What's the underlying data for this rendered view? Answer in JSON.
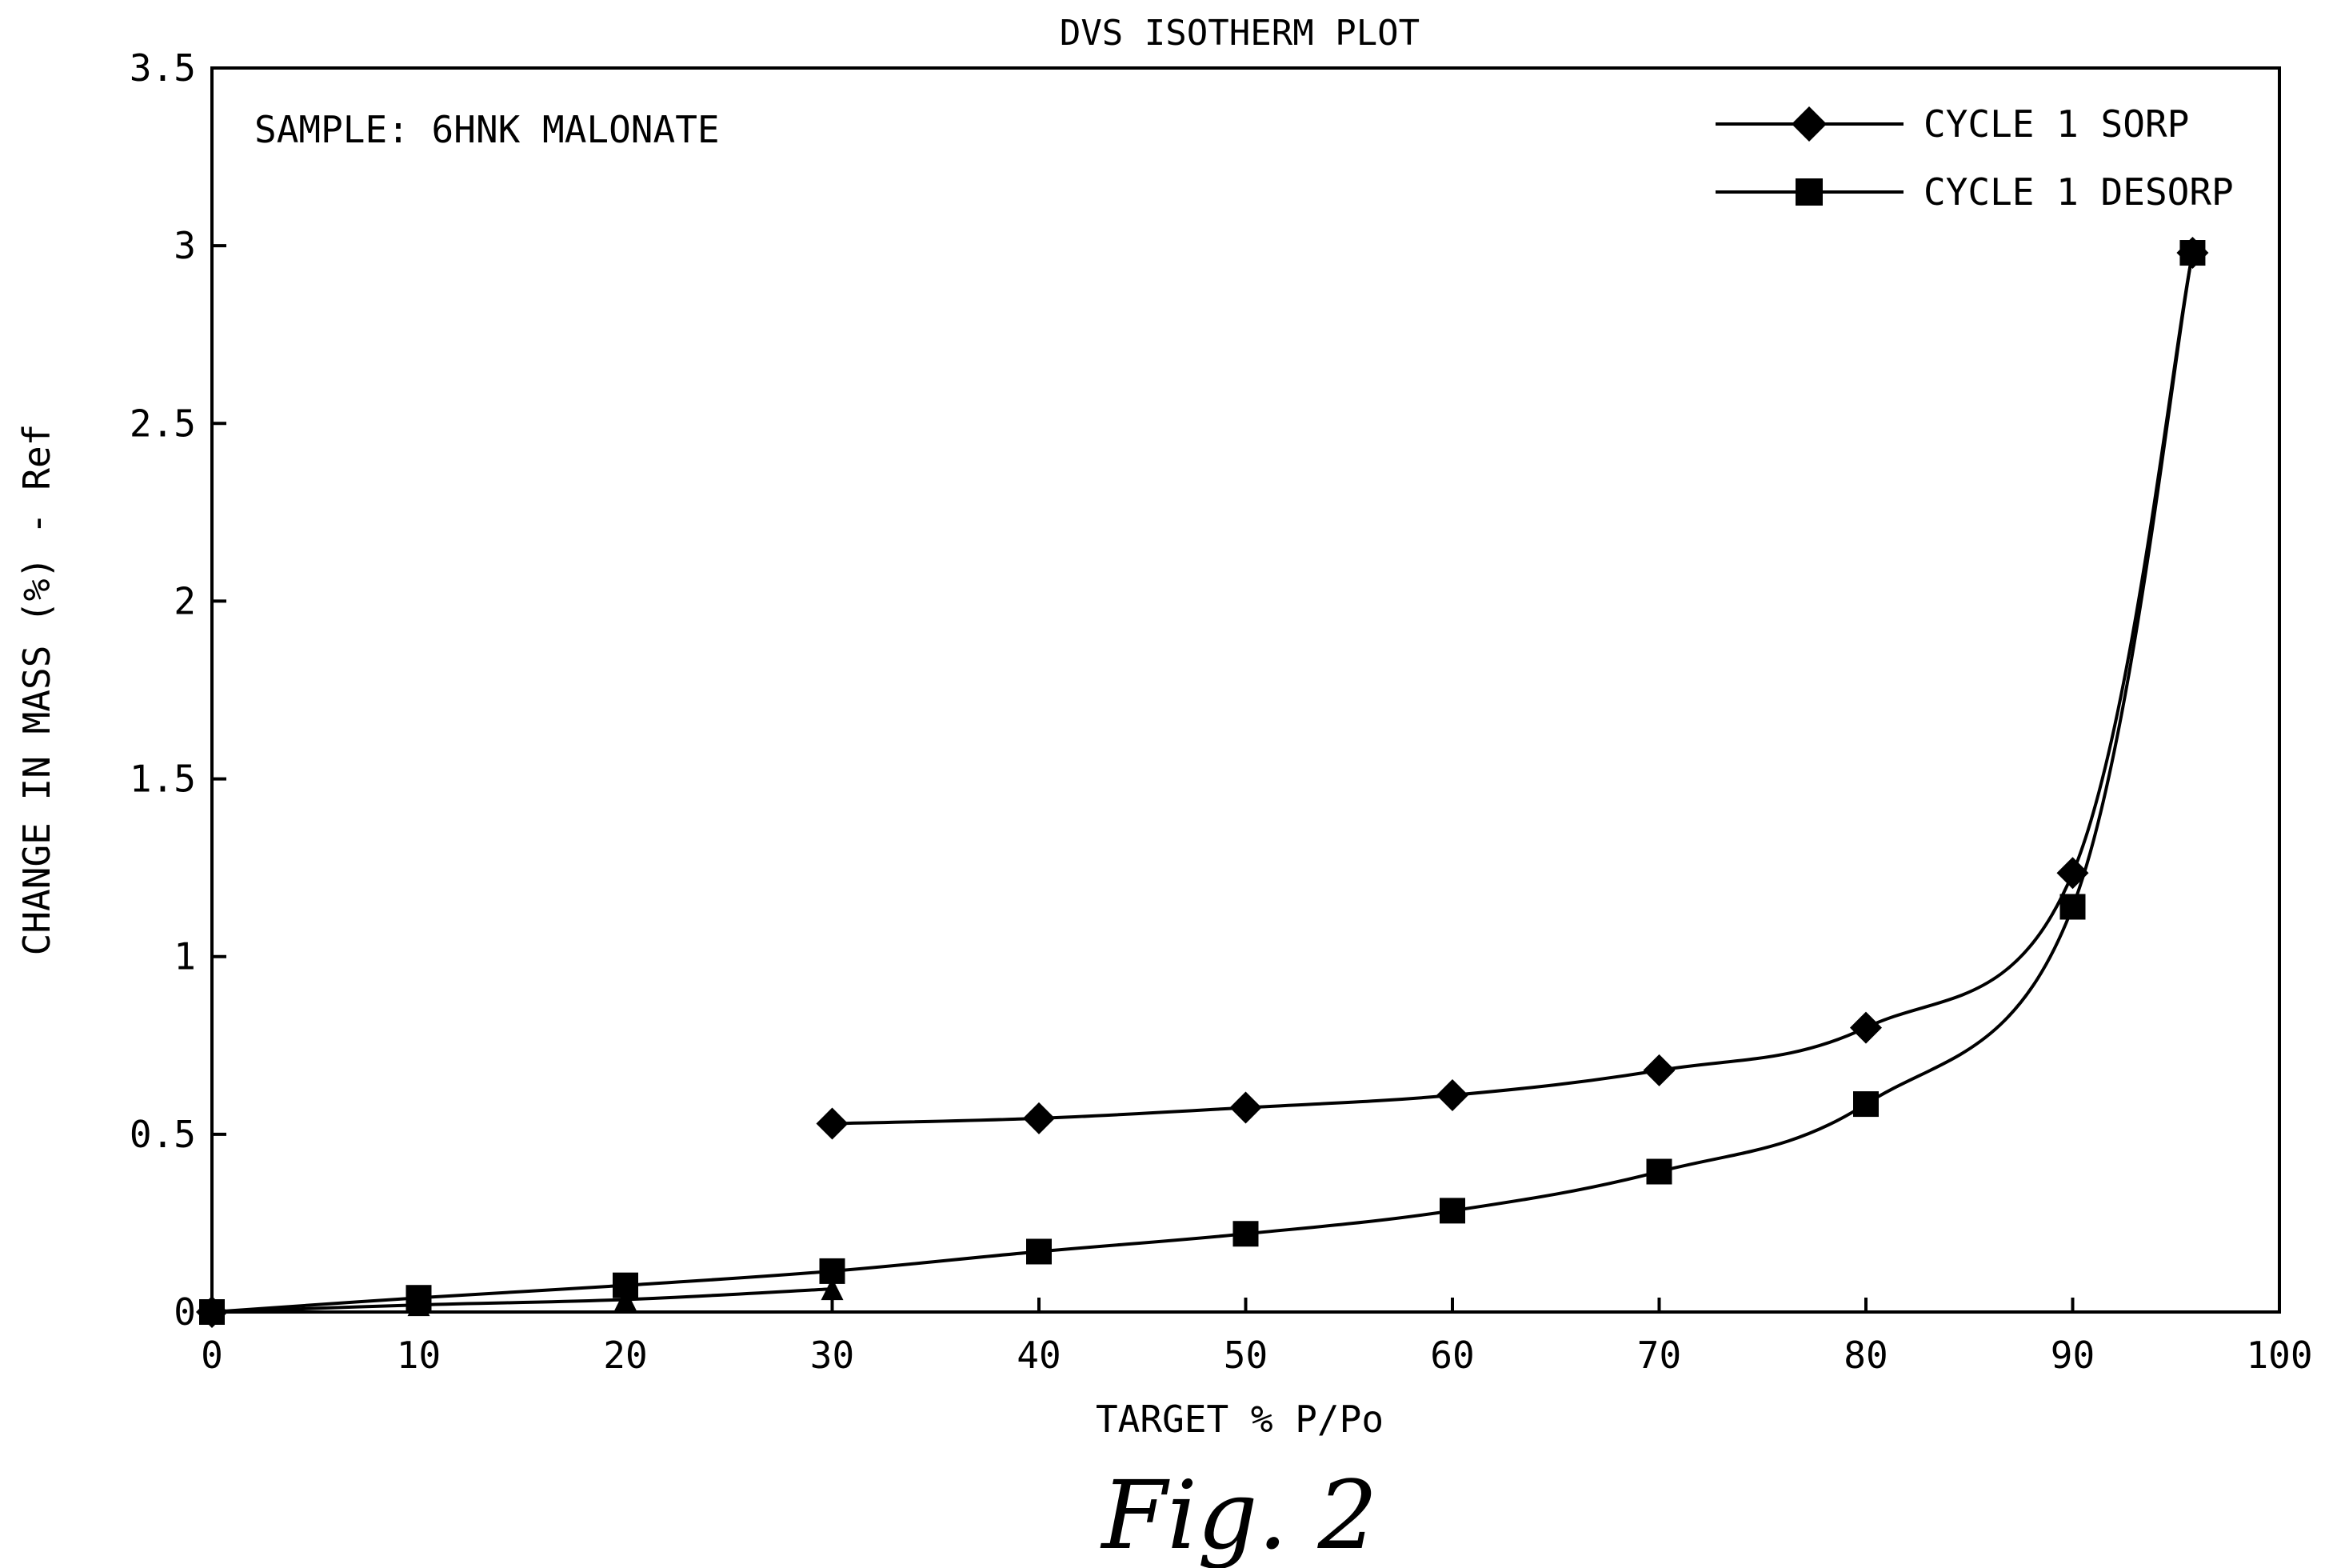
{
  "chart_data": {
    "type": "line",
    "title": "DVS ISOTHERM PLOT",
    "annotation": "SAMPLE: 6HNK MALONATE",
    "xlabel": "TARGET % P/Po",
    "ylabel": "CHANGE IN MASS (%) - Ref",
    "figure_caption": "Fig. 2",
    "xlim": [
      0,
      100
    ],
    "ylim": [
      0,
      3.5
    ],
    "xticks": [
      "0",
      "10",
      "20",
      "30",
      "40",
      "50",
      "60",
      "70",
      "80",
      "90",
      "100"
    ],
    "yticks": [
      "0",
      "0.5",
      "1",
      "1.5",
      "2",
      "2.5",
      "3",
      "3.5"
    ],
    "grid": false,
    "legend_position": "top-right",
    "series": [
      {
        "name": "CYCLE 1 SORP",
        "marker": "diamond",
        "color": "#000000",
        "x": [
          0,
          10,
          20,
          30
        ],
        "y": [
          0.0,
          0.02,
          0.035,
          0.065
        ]
      },
      {
        "name": "",
        "marker": "diamond",
        "color": "#000000",
        "x": [
          30,
          40,
          50,
          60,
          70,
          80,
          90,
          95.8
        ],
        "y": [
          0.53,
          0.545,
          0.575,
          0.61,
          0.68,
          0.8,
          1.235,
          2.98
        ]
      },
      {
        "name": "CYCLE 1 DESORP",
        "marker": "square",
        "color": "#000000",
        "x": [
          95.8,
          90,
          80,
          70,
          60,
          50,
          40,
          30,
          20,
          10,
          0
        ],
        "y": [
          2.98,
          1.14,
          0.585,
          0.395,
          0.285,
          0.22,
          0.17,
          0.115,
          0.075,
          0.04,
          0.0
        ]
      }
    ]
  }
}
